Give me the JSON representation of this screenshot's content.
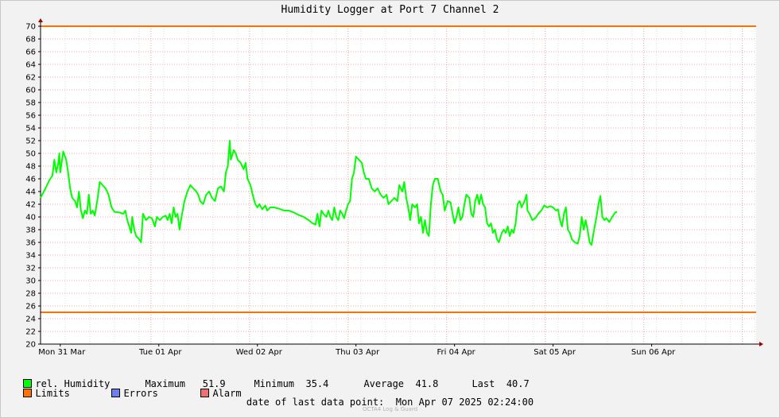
{
  "chart_data": {
    "type": "line",
    "title": "Humidity Logger at Port 7 Channel 2",
    "ylim": [
      20,
      70
    ],
    "ytick_step": 2,
    "xlim": [
      0,
      7.26
    ],
    "grid": true,
    "x_ticks": [
      {
        "x": 0.2,
        "label": "Mon 31 Mar"
      },
      {
        "x": 1.2,
        "label": "Tue 01 Apr"
      },
      {
        "x": 2.2,
        "label": "Wed 02 Apr"
      },
      {
        "x": 3.2,
        "label": "Thu 03 Apr"
      },
      {
        "x": 4.2,
        "label": "Fri 04 Apr"
      },
      {
        "x": 5.2,
        "label": "Sat 05 Apr"
      },
      {
        "x": 6.2,
        "label": "Sun 06 Apr"
      }
    ],
    "limits": [
      25,
      70
    ],
    "series": [
      {
        "name": "rel. Humidity",
        "color": "#00ff00",
        "points": [
          [
            0.0,
            43.0
          ],
          [
            0.05,
            44.5
          ],
          [
            0.09,
            45.8
          ],
          [
            0.12,
            46.5
          ],
          [
            0.14,
            49.0
          ],
          [
            0.16,
            47.0
          ],
          [
            0.18,
            48.5
          ],
          [
            0.19,
            50.0
          ],
          [
            0.2,
            47.0
          ],
          [
            0.23,
            50.3
          ],
          [
            0.26,
            49.0
          ],
          [
            0.28,
            47.0
          ],
          [
            0.3,
            44.5
          ],
          [
            0.32,
            43.0
          ],
          [
            0.35,
            42.5
          ],
          [
            0.37,
            41.5
          ],
          [
            0.39,
            44.0
          ],
          [
            0.41,
            41.0
          ],
          [
            0.43,
            39.8
          ],
          [
            0.45,
            41.0
          ],
          [
            0.47,
            40.5
          ],
          [
            0.49,
            43.5
          ],
          [
            0.51,
            40.5
          ],
          [
            0.53,
            41.0
          ],
          [
            0.55,
            40.2
          ],
          [
            0.58,
            43.0
          ],
          [
            0.6,
            45.5
          ],
          [
            0.63,
            45.0
          ],
          [
            0.66,
            44.5
          ],
          [
            0.69,
            43.5
          ],
          [
            0.72,
            41.5
          ],
          [
            0.75,
            40.8
          ],
          [
            0.8,
            40.7
          ],
          [
            0.84,
            40.5
          ],
          [
            0.86,
            41.0
          ],
          [
            0.88,
            39.5
          ],
          [
            0.9,
            38.5
          ],
          [
            0.92,
            37.5
          ],
          [
            0.93,
            40.0
          ],
          [
            0.95,
            38.0
          ],
          [
            0.97,
            37.0
          ],
          [
            1.0,
            36.5
          ],
          [
            1.02,
            36.0
          ],
          [
            1.04,
            40.5
          ],
          [
            1.07,
            39.5
          ],
          [
            1.1,
            40.0
          ],
          [
            1.13,
            39.8
          ],
          [
            1.16,
            38.5
          ],
          [
            1.18,
            40.0
          ],
          [
            1.21,
            39.5
          ],
          [
            1.24,
            40.0
          ],
          [
            1.27,
            40.2
          ],
          [
            1.29,
            39.5
          ],
          [
            1.31,
            40.5
          ],
          [
            1.33,
            39.0
          ],
          [
            1.35,
            41.5
          ],
          [
            1.37,
            40.0
          ],
          [
            1.39,
            40.5
          ],
          [
            1.41,
            38.0
          ],
          [
            1.43,
            40.0
          ],
          [
            1.46,
            42.5
          ],
          [
            1.49,
            44.0
          ],
          [
            1.52,
            45.0
          ],
          [
            1.55,
            44.5
          ],
          [
            1.58,
            44.0
          ],
          [
            1.6,
            43.5
          ],
          [
            1.62,
            42.5
          ],
          [
            1.65,
            42.0
          ],
          [
            1.68,
            43.5
          ],
          [
            1.71,
            44.0
          ],
          [
            1.74,
            43.0
          ],
          [
            1.77,
            42.5
          ],
          [
            1.8,
            44.5
          ],
          [
            1.83,
            44.8
          ],
          [
            1.86,
            44.0
          ],
          [
            1.88,
            47.0
          ],
          [
            1.9,
            48.0
          ],
          [
            1.92,
            52.0
          ],
          [
            1.93,
            49.0
          ],
          [
            1.96,
            50.5
          ],
          [
            1.98,
            50.0
          ],
          [
            2.0,
            49.0
          ],
          [
            2.03,
            48.5
          ],
          [
            2.06,
            47.5
          ],
          [
            2.08,
            48.5
          ],
          [
            2.1,
            46.0
          ],
          [
            2.13,
            45.0
          ],
          [
            2.16,
            43.0
          ],
          [
            2.18,
            42.0
          ],
          [
            2.2,
            41.5
          ],
          [
            2.22,
            42.0
          ],
          [
            2.25,
            41.2
          ],
          [
            2.28,
            41.8
          ],
          [
            2.3,
            41.0
          ],
          [
            2.33,
            41.5
          ],
          [
            2.37,
            41.5
          ],
          [
            2.42,
            41.3
          ],
          [
            2.47,
            41.0
          ],
          [
            2.52,
            41.0
          ],
          [
            2.57,
            40.7
          ],
          [
            2.62,
            40.3
          ],
          [
            2.67,
            40.0
          ],
          [
            2.72,
            39.5
          ],
          [
            2.76,
            39.0
          ],
          [
            2.79,
            38.8
          ],
          [
            2.81,
            40.5
          ],
          [
            2.83,
            38.5
          ],
          [
            2.85,
            41.0
          ],
          [
            2.87,
            40.5
          ],
          [
            2.9,
            40.0
          ],
          [
            2.92,
            41.0
          ],
          [
            2.94,
            40.0
          ],
          [
            2.96,
            39.5
          ],
          [
            2.98,
            41.5
          ],
          [
            3.0,
            40.0
          ],
          [
            3.02,
            39.5
          ],
          [
            3.04,
            41.0
          ],
          [
            3.06,
            40.5
          ],
          [
            3.08,
            39.8
          ],
          [
            3.1,
            41.0
          ],
          [
            3.12,
            42.0
          ],
          [
            3.14,
            42.5
          ],
          [
            3.16,
            46.0
          ],
          [
            3.18,
            47.0
          ],
          [
            3.2,
            49.5
          ],
          [
            3.23,
            49.0
          ],
          [
            3.26,
            48.5
          ],
          [
            3.28,
            47.0
          ],
          [
            3.3,
            46.0
          ],
          [
            3.33,
            46.0
          ],
          [
            3.36,
            44.5
          ],
          [
            3.39,
            44.0
          ],
          [
            3.42,
            44.5
          ],
          [
            3.45,
            43.5
          ],
          [
            3.48,
            43.0
          ],
          [
            3.51,
            43.5
          ],
          [
            3.53,
            42.0
          ],
          [
            3.56,
            42.5
          ],
          [
            3.59,
            43.0
          ],
          [
            3.62,
            42.5
          ],
          [
            3.64,
            45.0
          ],
          [
            3.67,
            44.0
          ],
          [
            3.69,
            45.5
          ],
          [
            3.71,
            43.0
          ],
          [
            3.73,
            41.5
          ],
          [
            3.75,
            39.5
          ],
          [
            3.77,
            42.0
          ],
          [
            3.8,
            41.5
          ],
          [
            3.82,
            42.0
          ],
          [
            3.84,
            39.0
          ],
          [
            3.86,
            40.0
          ],
          [
            3.88,
            37.5
          ],
          [
            3.9,
            39.5
          ],
          [
            3.92,
            37.5
          ],
          [
            3.94,
            37.0
          ],
          [
            3.96,
            42.0
          ],
          [
            3.98,
            45.0
          ],
          [
            4.0,
            46.0
          ],
          [
            4.03,
            46.0
          ],
          [
            4.06,
            44.0
          ],
          [
            4.08,
            43.5
          ],
          [
            4.1,
            41.0
          ],
          [
            4.13,
            42.5
          ],
          [
            4.16,
            42.3
          ],
          [
            4.18,
            40.5
          ],
          [
            4.2,
            39.0
          ],
          [
            4.22,
            40.0
          ],
          [
            4.24,
            41.5
          ],
          [
            4.26,
            39.5
          ],
          [
            4.28,
            40.0
          ],
          [
            4.3,
            42.0
          ],
          [
            4.32,
            43.5
          ],
          [
            4.35,
            43.0
          ],
          [
            4.37,
            40.5
          ],
          [
            4.39,
            40.0
          ],
          [
            4.41,
            42.5
          ],
          [
            4.43,
            43.5
          ],
          [
            4.45,
            42.0
          ],
          [
            4.47,
            43.5
          ],
          [
            4.49,
            42.0
          ],
          [
            4.51,
            41.5
          ],
          [
            4.53,
            39.0
          ],
          [
            4.55,
            38.5
          ],
          [
            4.57,
            39.0
          ],
          [
            4.59,
            37.5
          ],
          [
            4.61,
            38.0
          ],
          [
            4.63,
            36.5
          ],
          [
            4.65,
            36.0
          ],
          [
            4.68,
            37.5
          ],
          [
            4.7,
            38.0
          ],
          [
            4.72,
            37.5
          ],
          [
            4.74,
            38.5
          ],
          [
            4.76,
            37.0
          ],
          [
            4.78,
            38.0
          ],
          [
            4.8,
            37.5
          ],
          [
            4.82,
            39.0
          ],
          [
            4.84,
            42.0
          ],
          [
            4.86,
            42.5
          ],
          [
            4.88,
            41.5
          ],
          [
            4.91,
            42.5
          ],
          [
            4.93,
            43.5
          ],
          [
            4.94,
            41.0
          ],
          [
            4.96,
            40.5
          ],
          [
            4.99,
            39.5
          ],
          [
            5.02,
            39.8
          ],
          [
            5.05,
            40.5
          ],
          [
            5.08,
            41.0
          ],
          [
            5.11,
            41.8
          ],
          [
            5.14,
            41.5
          ],
          [
            5.17,
            41.7
          ],
          [
            5.2,
            41.5
          ],
          [
            5.23,
            41.0
          ],
          [
            5.25,
            41.2
          ],
          [
            5.27,
            39.5
          ],
          [
            5.29,
            38.5
          ],
          [
            5.31,
            40.5
          ],
          [
            5.33,
            41.5
          ],
          [
            5.35,
            38.0
          ],
          [
            5.37,
            37.5
          ],
          [
            5.39,
            36.5
          ],
          [
            5.42,
            36.0
          ],
          [
            5.45,
            35.8
          ],
          [
            5.47,
            37.0
          ],
          [
            5.49,
            40.0
          ],
          [
            5.51,
            38.0
          ],
          [
            5.53,
            39.5
          ],
          [
            5.55,
            38.0
          ],
          [
            5.57,
            36.0
          ],
          [
            5.59,
            35.6
          ],
          [
            5.61,
            37.5
          ],
          [
            5.64,
            40.0
          ],
          [
            5.66,
            42.0
          ],
          [
            5.68,
            43.3
          ],
          [
            5.7,
            40.0
          ],
          [
            5.72,
            39.5
          ],
          [
            5.74,
            39.8
          ],
          [
            5.77,
            39.2
          ],
          [
            5.8,
            40.0
          ],
          [
            5.83,
            40.7
          ],
          [
            5.85,
            40.8
          ]
        ]
      }
    ],
    "legend": {
      "series_label": "rel. Humidity",
      "maximum_label": "Maximum",
      "maximum_value": "51.9",
      "minimum_label": "Minimum",
      "minimum_value": "35.4",
      "average_label": "Average",
      "average_value": "41.8",
      "last_label": "Last",
      "last_value": "40.7",
      "limits_label": "Limits",
      "errors_label": "Errors",
      "alarm_label": "Alarm"
    },
    "colors": {
      "humidity": "#00ff00",
      "limits": "#ff7000",
      "errors": "#6f7ff0",
      "alarm": "#f07070",
      "grid_major": "#e8a8a8",
      "grid_minor": "#dcdcdc"
    }
  },
  "footer": {
    "label": "date of last data point:",
    "value": "Mon Apr 07 2025 02:24:00"
  },
  "watermark": "OCTA4 Log & Guard"
}
